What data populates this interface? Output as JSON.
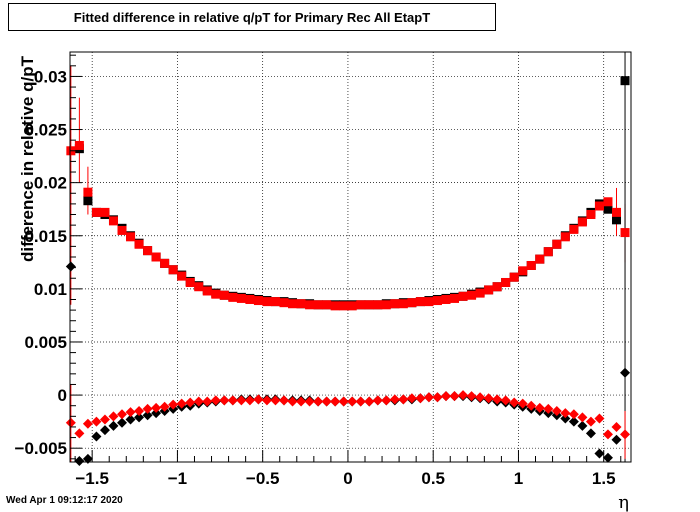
{
  "title": "Fitted difference in relative q/pT for Primary Rec All EtapT",
  "footer": "Wed Apr  1 09:12:17 2020",
  "chart_data": {
    "type": "scatter",
    "xlabel": "η",
    "ylabel": "difference in relative q/pT",
    "xlim": [
      -1.63,
      1.66
    ],
    "ylim": [
      -0.0063,
      0.0323
    ],
    "grid": true,
    "x_ticks": [
      -1.5,
      -1,
      -0.5,
      0,
      0.5,
      1,
      1.5
    ],
    "x_tick_labels": [
      "−1.5",
      "−1",
      "−0.5",
      "0",
      "0.5",
      "1",
      "1.5"
    ],
    "y_ticks": [
      -0.005,
      0,
      0.005,
      0.01,
      0.015,
      0.02,
      0.025,
      0.03
    ],
    "y_tick_labels": [
      "−0.005",
      "0",
      "0.005",
      "0.01",
      "0.015",
      "0.02",
      "0.025",
      "0.03"
    ],
    "series": [
      {
        "marker": "square",
        "color": "#000000",
        "points": [
          [
            -1.575,
            0.0232
          ],
          [
            -1.525,
            0.0183
          ],
          [
            -1.475,
            0.0172
          ],
          [
            -1.425,
            0.017
          ],
          [
            -1.375,
            0.0165
          ],
          [
            -1.325,
            0.0157
          ],
          [
            -1.275,
            0.015
          ],
          [
            -1.225,
            0.0143
          ],
          [
            -1.175,
            0.0136
          ],
          [
            -1.125,
            0.013
          ],
          [
            -1.075,
            0.0124
          ],
          [
            -1.025,
            0.0118
          ],
          [
            -0.975,
            0.0113
          ],
          [
            -0.925,
            0.0107
          ],
          [
            -0.875,
            0.0103
          ],
          [
            -0.825,
            0.0099
          ],
          [
            -0.775,
            0.0096
          ],
          [
            -0.725,
            0.0094
          ],
          [
            -0.675,
            0.0093
          ],
          [
            -0.625,
            0.0092
          ],
          [
            -0.575,
            0.0091
          ],
          [
            -0.525,
            0.009
          ],
          [
            -0.475,
            0.0089
          ],
          [
            -0.425,
            0.0088
          ],
          [
            -0.375,
            0.0088
          ],
          [
            -0.325,
            0.0087
          ],
          [
            -0.275,
            0.0086
          ],
          [
            -0.225,
            0.0086
          ],
          [
            -0.175,
            0.0085
          ],
          [
            -0.125,
            0.0085
          ],
          [
            -0.075,
            0.0085
          ],
          [
            -0.025,
            0.0085
          ],
          [
            0.025,
            0.0085
          ],
          [
            0.075,
            0.0085
          ],
          [
            0.125,
            0.0085
          ],
          [
            0.175,
            0.0085
          ],
          [
            0.225,
            0.0086
          ],
          [
            0.275,
            0.0086
          ],
          [
            0.325,
            0.0087
          ],
          [
            0.375,
            0.0087
          ],
          [
            0.425,
            0.0088
          ],
          [
            0.475,
            0.0089
          ],
          [
            0.525,
            0.009
          ],
          [
            0.575,
            0.0091
          ],
          [
            0.625,
            0.0092
          ],
          [
            0.675,
            0.0093
          ],
          [
            0.725,
            0.0095
          ],
          [
            0.775,
            0.0097
          ],
          [
            0.825,
            0.0099
          ],
          [
            0.875,
            0.0102
          ],
          [
            0.925,
            0.0106
          ],
          [
            0.975,
            0.0111
          ],
          [
            1.025,
            0.0116
          ],
          [
            1.075,
            0.0122
          ],
          [
            1.125,
            0.0128
          ],
          [
            1.175,
            0.0135
          ],
          [
            1.225,
            0.0142
          ],
          [
            1.275,
            0.015
          ],
          [
            1.325,
            0.0157
          ],
          [
            1.375,
            0.0164
          ],
          [
            1.425,
            0.0172
          ],
          [
            1.475,
            0.018
          ],
          [
            1.525,
            0.0175
          ],
          [
            1.575,
            0.0165
          ],
          [
            1.625,
            0.0296
          ]
        ]
      },
      {
        "marker": "diamond",
        "color": "#000000",
        "points": [
          [
            -1.625,
            0.0121
          ],
          [
            -1.575,
            -0.0062
          ],
          [
            -1.525,
            -0.006
          ],
          [
            -1.475,
            -0.0039
          ],
          [
            -1.425,
            -0.0033
          ],
          [
            -1.375,
            -0.0029
          ],
          [
            -1.325,
            -0.0026
          ],
          [
            -1.275,
            -0.0023
          ],
          [
            -1.225,
            -0.0021
          ],
          [
            -1.175,
            -0.0019
          ],
          [
            -1.125,
            -0.0017
          ],
          [
            -1.075,
            -0.0015
          ],
          [
            -1.025,
            -0.0013
          ],
          [
            -0.975,
            -0.0011
          ],
          [
            -0.925,
            -0.001
          ],
          [
            -0.875,
            -0.0008
          ],
          [
            -0.825,
            -0.0007
          ],
          [
            -0.775,
            -0.0006
          ],
          [
            -0.725,
            -0.0005
          ],
          [
            -0.675,
            -0.0005
          ],
          [
            -0.625,
            -0.0004
          ],
          [
            -0.575,
            -0.0004
          ],
          [
            -0.525,
            -0.0004
          ],
          [
            -0.475,
            -0.0004
          ],
          [
            -0.425,
            -0.0004
          ],
          [
            -0.375,
            -0.0005
          ],
          [
            -0.325,
            -0.0005
          ],
          [
            -0.275,
            -0.0005
          ],
          [
            -0.225,
            -0.0005
          ],
          [
            -0.175,
            -0.0006
          ],
          [
            -0.125,
            -0.0006
          ],
          [
            -0.075,
            -0.0006
          ],
          [
            -0.025,
            -0.0006
          ],
          [
            0.025,
            -0.0006
          ],
          [
            0.075,
            -0.0006
          ],
          [
            0.125,
            -0.0006
          ],
          [
            0.175,
            -0.0005
          ],
          [
            0.225,
            -0.0005
          ],
          [
            0.275,
            -0.0005
          ],
          [
            0.325,
            -0.0004
          ],
          [
            0.375,
            -0.0004
          ],
          [
            0.425,
            -0.0003
          ],
          [
            0.475,
            -0.0002
          ],
          [
            0.525,
            -0.0002
          ],
          [
            0.575,
            -0.0001
          ],
          [
            0.625,
            -0.0001
          ],
          [
            0.675,
            -0.0001
          ],
          [
            0.725,
            -0.0002
          ],
          [
            0.775,
            -0.0003
          ],
          [
            0.825,
            -0.0004
          ],
          [
            0.875,
            -0.0006
          ],
          [
            0.925,
            -0.0007
          ],
          [
            0.975,
            -0.0009
          ],
          [
            1.025,
            -0.0011
          ],
          [
            1.075,
            -0.0013
          ],
          [
            1.125,
            -0.0015
          ],
          [
            1.175,
            -0.0017
          ],
          [
            1.225,
            -0.0019
          ],
          [
            1.275,
            -0.0022
          ],
          [
            1.325,
            -0.0025
          ],
          [
            1.375,
            -0.0029
          ],
          [
            1.425,
            -0.0036
          ],
          [
            1.475,
            -0.0055
          ],
          [
            1.525,
            -0.0059
          ],
          [
            1.575,
            -0.0042
          ],
          [
            1.625,
            0.0021
          ]
        ]
      },
      {
        "marker": "square",
        "color": "#ff0000",
        "points": [
          [
            -1.625,
            0.023
          ],
          [
            -1.575,
            0.0235
          ],
          [
            -1.525,
            0.0191
          ],
          [
            -1.475,
            0.0172
          ],
          [
            -1.425,
            0.0172
          ],
          [
            -1.375,
            0.0164
          ],
          [
            -1.325,
            0.0155
          ],
          [
            -1.275,
            0.0149
          ],
          [
            -1.225,
            0.0142
          ],
          [
            -1.175,
            0.0136
          ],
          [
            -1.125,
            0.013
          ],
          [
            -1.075,
            0.0124
          ],
          [
            -1.025,
            0.0118
          ],
          [
            -0.975,
            0.0112
          ],
          [
            -0.925,
            0.0106
          ],
          [
            -0.875,
            0.0102
          ],
          [
            -0.825,
            0.0098
          ],
          [
            -0.775,
            0.0095
          ],
          [
            -0.725,
            0.0094
          ],
          [
            -0.675,
            0.0092
          ],
          [
            -0.625,
            0.0091
          ],
          [
            -0.575,
            0.009
          ],
          [
            -0.525,
            0.0089
          ],
          [
            -0.475,
            0.0088
          ],
          [
            -0.425,
            0.0088
          ],
          [
            -0.375,
            0.0087
          ],
          [
            -0.325,
            0.0086
          ],
          [
            -0.275,
            0.0086
          ],
          [
            -0.225,
            0.0085
          ],
          [
            -0.175,
            0.0085
          ],
          [
            -0.125,
            0.0085
          ],
          [
            -0.075,
            0.0084
          ],
          [
            -0.025,
            0.0084
          ],
          [
            0.025,
            0.0084
          ],
          [
            0.075,
            0.0085
          ],
          [
            0.125,
            0.0085
          ],
          [
            0.175,
            0.0085
          ],
          [
            0.225,
            0.0085
          ],
          [
            0.275,
            0.0086
          ],
          [
            0.325,
            0.0086
          ],
          [
            0.375,
            0.0087
          ],
          [
            0.425,
            0.0088
          ],
          [
            0.475,
            0.0088
          ],
          [
            0.525,
            0.0089
          ],
          [
            0.575,
            0.009
          ],
          [
            0.625,
            0.0091
          ],
          [
            0.675,
            0.0093
          ],
          [
            0.725,
            0.0094
          ],
          [
            0.775,
            0.0096
          ],
          [
            0.825,
            0.0099
          ],
          [
            0.875,
            0.0102
          ],
          [
            0.925,
            0.0106
          ],
          [
            0.975,
            0.0111
          ],
          [
            1.025,
            0.0117
          ],
          [
            1.075,
            0.0122
          ],
          [
            1.125,
            0.0128
          ],
          [
            1.175,
            0.0135
          ],
          [
            1.225,
            0.0142
          ],
          [
            1.275,
            0.0149
          ],
          [
            1.325,
            0.0156
          ],
          [
            1.375,
            0.0163
          ],
          [
            1.425,
            0.017
          ],
          [
            1.475,
            0.0178
          ],
          [
            1.525,
            0.0182
          ],
          [
            1.575,
            0.0172
          ],
          [
            1.625,
            0.0153
          ]
        ]
      },
      {
        "marker": "diamond",
        "color": "#ff0000",
        "points": [
          [
            -1.625,
            -0.0026
          ],
          [
            -1.575,
            -0.0036
          ],
          [
            -1.525,
            -0.0027
          ],
          [
            -1.475,
            -0.0025
          ],
          [
            -1.425,
            -0.0023
          ],
          [
            -1.375,
            -0.002
          ],
          [
            -1.325,
            -0.0018
          ],
          [
            -1.275,
            -0.0016
          ],
          [
            -1.225,
            -0.0015
          ],
          [
            -1.175,
            -0.0013
          ],
          [
            -1.125,
            -0.0012
          ],
          [
            -1.075,
            -0.0011
          ],
          [
            -1.025,
            -0.0009
          ],
          [
            -0.975,
            -0.0008
          ],
          [
            -0.925,
            -0.0007
          ],
          [
            -0.875,
            -0.0006
          ],
          [
            -0.825,
            -0.0006
          ],
          [
            -0.775,
            -0.0005
          ],
          [
            -0.725,
            -0.0005
          ],
          [
            -0.675,
            -0.0005
          ],
          [
            -0.625,
            -0.0005
          ],
          [
            -0.575,
            -0.0005
          ],
          [
            -0.525,
            -0.0004
          ],
          [
            -0.475,
            -0.0005
          ],
          [
            -0.425,
            -0.0005
          ],
          [
            -0.375,
            -0.0005
          ],
          [
            -0.325,
            -0.0006
          ],
          [
            -0.275,
            -0.0006
          ],
          [
            -0.225,
            -0.0006
          ],
          [
            -0.175,
            -0.0006
          ],
          [
            -0.125,
            -0.0006
          ],
          [
            -0.075,
            -0.0006
          ],
          [
            -0.025,
            -0.0006
          ],
          [
            0.025,
            -0.0006
          ],
          [
            0.075,
            -0.0006
          ],
          [
            0.125,
            -0.0006
          ],
          [
            0.175,
            -0.0005
          ],
          [
            0.225,
            -0.0005
          ],
          [
            0.275,
            -0.0004
          ],
          [
            0.325,
            -0.0004
          ],
          [
            0.375,
            -0.0003
          ],
          [
            0.425,
            -0.0003
          ],
          [
            0.475,
            -0.0002
          ],
          [
            0.525,
            -0.0002
          ],
          [
            0.575,
            -0.0001
          ],
          [
            0.625,
            -0.0001
          ],
          [
            0.675,
            0.0
          ],
          [
            0.725,
            -0.0001
          ],
          [
            0.775,
            -0.0002
          ],
          [
            0.825,
            -0.0003
          ],
          [
            0.875,
            -0.0004
          ],
          [
            0.925,
            -0.0005
          ],
          [
            0.975,
            -0.0007
          ],
          [
            1.025,
            -0.0008
          ],
          [
            1.075,
            -0.001
          ],
          [
            1.125,
            -0.0012
          ],
          [
            1.175,
            -0.0013
          ],
          [
            1.225,
            -0.0015
          ],
          [
            1.275,
            -0.0017
          ],
          [
            1.325,
            -0.0018
          ],
          [
            1.375,
            -0.0021
          ],
          [
            1.425,
            -0.0025
          ],
          [
            1.475,
            -0.0022
          ],
          [
            1.525,
            -0.0037
          ],
          [
            1.575,
            -0.003
          ],
          [
            1.625,
            -0.0037
          ]
        ]
      }
    ],
    "error_bars": [
      {
        "series": 2,
        "x": -1.625,
        "low": 0.0085,
        "high": 0.031,
        "color": "#ff0000"
      },
      {
        "series": 2,
        "x": -1.575,
        "low": 0.02,
        "high": 0.028,
        "color": "#ff0000"
      },
      {
        "series": 2,
        "x": -1.525,
        "low": 0.017,
        "high": 0.0215,
        "color": "#ff0000"
      },
      {
        "series": 2,
        "x": 1.575,
        "low": 0.015,
        "high": 0.0195,
        "color": "#ff0000"
      },
      {
        "series": 2,
        "x": 1.625,
        "low": 0.0125,
        "high": 0.018,
        "color": "#ff0000"
      },
      {
        "series": 0,
        "x": 1.625,
        "low": -0.0063,
        "high": 0.0323,
        "color": "#000000"
      },
      {
        "series": 3,
        "x": -1.625,
        "low": -0.0063,
        "high": 0.001,
        "color": "#ff0000"
      },
      {
        "series": 3,
        "x": 1.625,
        "low": -0.006,
        "high": -0.0015,
        "color": "#ff0000"
      }
    ]
  }
}
